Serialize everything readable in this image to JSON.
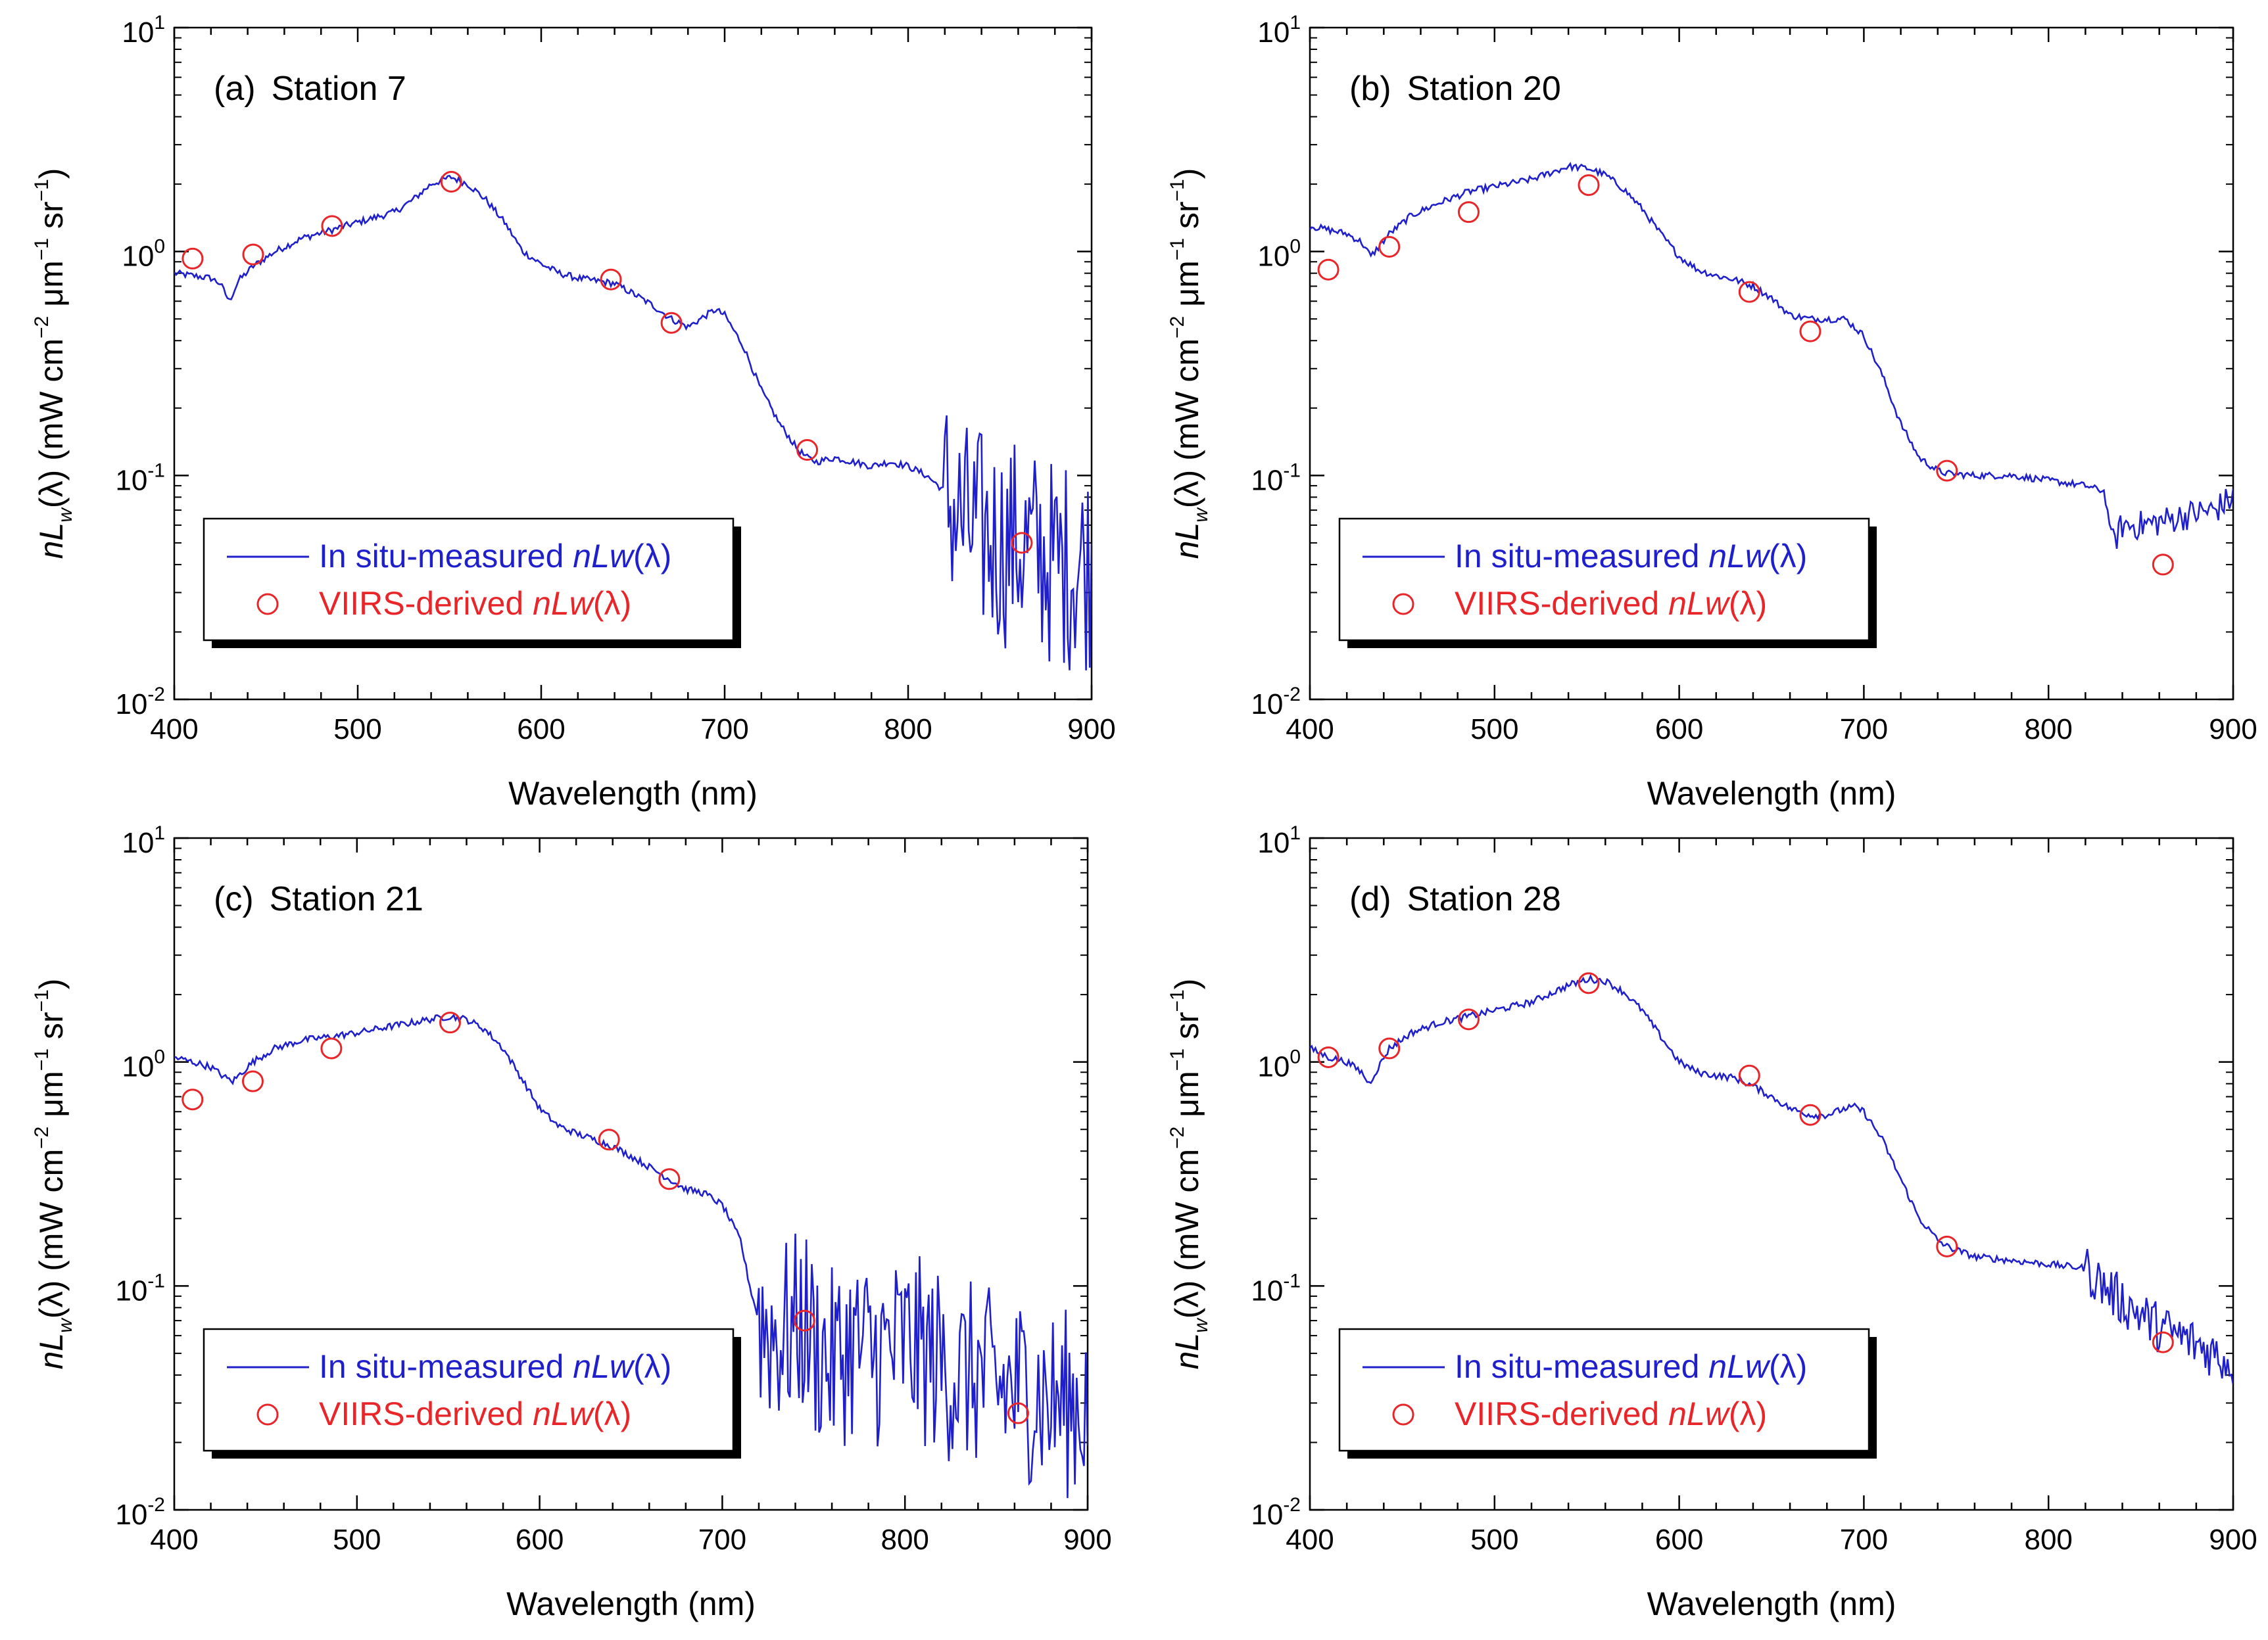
{
  "figure": {
    "description_text": "",
    "colors": {
      "measured": "#1f1fcc",
      "satellite": "#e8262a",
      "axis": "#000000"
    }
  },
  "legend": {
    "measured_label_prefix": "In situ-measured ",
    "satellite_label_prefix": "VIIRS-derived ",
    "quantity_italic": "nLw",
    "quantity_suffix": "(λ)"
  },
  "axes_text": {
    "xlabel": "Wavelength (nm)",
    "ylabel_n": "nL",
    "ylabel_w": "w",
    "ylabel_rest": "(λ) (mW cm",
    "ylabel_exp1": "−2",
    "ylabel_mu": " μm",
    "ylabel_exp2": "−1",
    "ylabel_sr": " sr",
    "ylabel_exp3": "−1",
    "ylabel_close": ")",
    "ytick_base": "10",
    "ytick_exps": [
      "-2",
      "-1",
      "0",
      "1"
    ],
    "xtick_labels": [
      "400",
      "500",
      "600",
      "700",
      "800",
      "900"
    ]
  },
  "chart_data": [
    {
      "type": "line",
      "panel_label": "(a)",
      "title": "Station 7",
      "xlabel": "Wavelength (nm)",
      "ylabel": "nLw(λ) (mW cm−2 μm−1 sr−1)",
      "xlim": [
        400,
        900
      ],
      "ylim": [
        0.01,
        10
      ],
      "yscale": "log",
      "legend_position": "bottom-left",
      "series": [
        {
          "name": "In situ-measured nLw(λ)",
          "style": "line",
          "x": [
            400,
            410,
            420,
            425,
            430,
            435,
            443,
            455,
            470,
            486,
            500,
            520,
            530,
            540,
            551,
            560,
            570,
            580,
            590,
            600,
            610,
            620,
            630,
            640,
            650,
            660,
            671,
            680,
            690,
            695,
            700,
            710,
            720,
            730,
            740,
            745,
            750,
            760,
            770,
            780,
            790,
            800,
            810,
            820,
            830,
            840,
            850,
            860,
            870,
            880,
            890,
            900
          ],
          "y": [
            0.8,
            0.78,
            0.76,
            0.72,
            0.6,
            0.74,
            0.86,
            1.0,
            1.15,
            1.25,
            1.35,
            1.5,
            1.7,
            2.0,
            2.15,
            2.0,
            1.7,
            1.35,
            1.0,
            0.88,
            0.8,
            0.76,
            0.74,
            0.72,
            0.65,
            0.58,
            0.5,
            0.46,
            0.52,
            0.55,
            0.52,
            0.38,
            0.24,
            0.17,
            0.13,
            0.12,
            0.115,
            0.12,
            0.115,
            0.11,
            0.115,
            0.11,
            0.1,
            0.085,
            0.06,
            0.055,
            0.05,
            0.05,
            0.045,
            0.04,
            0.04,
            0.04
          ],
          "noise_from": 820,
          "noise_amp": 0.5
        },
        {
          "name": "VIIRS-derived nLw(λ)",
          "style": "markers",
          "x": [
            410,
            443,
            486,
            551,
            638,
            671,
            745,
            862
          ],
          "y": [
            0.93,
            0.97,
            1.3,
            2.05,
            0.75,
            0.48,
            0.13,
            0.05
          ]
        }
      ]
    },
    {
      "type": "line",
      "panel_label": "(b)",
      "title": "Station 20",
      "xlabel": "Wavelength (nm)",
      "ylabel": "nLw(λ) (mW cm−2 μm−1 sr−1)",
      "xlim": [
        400,
        900
      ],
      "ylim": [
        0.01,
        10
      ],
      "yscale": "log",
      "legend_position": "bottom-left",
      "series": [
        {
          "name": "In situ-measured nLw(λ)",
          "style": "line",
          "x": [
            400,
            410,
            420,
            428,
            433,
            443,
            455,
            470,
            486,
            500,
            520,
            540,
            551,
            560,
            570,
            580,
            590,
            600,
            610,
            620,
            630,
            640,
            650,
            660,
            671,
            680,
            690,
            700,
            710,
            720,
            730,
            740,
            745,
            760,
            780,
            800,
            820,
            830,
            835,
            840,
            850,
            860,
            870,
            880,
            890,
            900
          ],
          "y": [
            1.3,
            1.25,
            1.2,
            1.1,
            0.95,
            1.2,
            1.45,
            1.65,
            1.85,
            1.95,
            2.1,
            2.4,
            2.35,
            2.2,
            1.9,
            1.55,
            1.2,
            0.95,
            0.83,
            0.78,
            0.75,
            0.7,
            0.62,
            0.52,
            0.5,
            0.5,
            0.5,
            0.42,
            0.28,
            0.17,
            0.12,
            0.105,
            0.102,
            0.1,
            0.1,
            0.095,
            0.09,
            0.085,
            0.05,
            0.06,
            0.06,
            0.062,
            0.065,
            0.068,
            0.07,
            0.08
          ],
          "noise_from": 835,
          "noise_amp": 0.07
        },
        {
          "name": "VIIRS-derived nLw(λ)",
          "style": "markers",
          "x": [
            410,
            443,
            486,
            551,
            638,
            671,
            745,
            862
          ],
          "y": [
            0.83,
            1.05,
            1.5,
            1.98,
            0.66,
            0.44,
            0.105,
            0.04
          ]
        }
      ]
    },
    {
      "type": "line",
      "panel_label": "(c)",
      "title": "Station 21",
      "xlabel": "Wavelength (nm)",
      "ylabel": "nLw(λ) (mW cm−2 μm−1 sr−1)",
      "xlim": [
        400,
        900
      ],
      "ylim": [
        0.01,
        10
      ],
      "yscale": "log",
      "legend_position": "bottom-left",
      "series": [
        {
          "name": "In situ-measured nLw(λ)",
          "style": "line",
          "x": [
            400,
            410,
            420,
            428,
            432,
            443,
            455,
            470,
            486,
            500,
            520,
            540,
            551,
            560,
            570,
            580,
            590,
            600,
            610,
            620,
            630,
            640,
            650,
            660,
            671,
            680,
            690,
            700,
            710,
            715,
            720,
            730,
            740,
            745,
            750,
            760,
            770,
            780,
            790,
            800,
            810,
            820,
            830,
            840,
            850,
            860,
            870,
            880,
            890,
            900
          ],
          "y": [
            1.05,
            1.0,
            0.95,
            0.85,
            0.82,
            1.0,
            1.15,
            1.25,
            1.3,
            1.35,
            1.45,
            1.55,
            1.6,
            1.55,
            1.4,
            1.15,
            0.85,
            0.62,
            0.52,
            0.48,
            0.45,
            0.42,
            0.38,
            0.34,
            0.3,
            0.27,
            0.26,
            0.23,
            0.16,
            0.1,
            0.07,
            0.06,
            0.065,
            0.07,
            0.055,
            0.045,
            0.055,
            0.05,
            0.05,
            0.055,
            0.05,
            0.045,
            0.04,
            0.04,
            0.035,
            0.035,
            0.035,
            0.03,
            0.03,
            0.03
          ],
          "noise_from": 720,
          "noise_amp": 0.45
        },
        {
          "name": "VIIRS-derived nLw(λ)",
          "style": "markers",
          "x": [
            410,
            443,
            486,
            551,
            638,
            671,
            745,
            862
          ],
          "y": [
            0.68,
            0.82,
            1.15,
            1.5,
            0.45,
            0.3,
            0.07,
            0.027
          ]
        }
      ]
    },
    {
      "type": "line",
      "panel_label": "(d)",
      "title": "Station 28",
      "xlabel": "Wavelength (nm)",
      "ylabel": "nLw(λ) (mW cm−2 μm−1 sr−1)",
      "xlim": [
        400,
        900
      ],
      "ylim": [
        0.01,
        10
      ],
      "yscale": "log",
      "legend_position": "bottom-left",
      "series": [
        {
          "name": "In situ-measured nLw(λ)",
          "style": "line",
          "x": [
            400,
            410,
            420,
            428,
            432,
            443,
            455,
            470,
            486,
            500,
            520,
            540,
            551,
            560,
            570,
            580,
            590,
            600,
            610,
            620,
            630,
            640,
            650,
            660,
            671,
            680,
            690,
            695,
            700,
            710,
            720,
            730,
            740,
            745,
            760,
            780,
            800,
            820,
            830,
            840,
            850,
            860,
            870,
            880,
            890,
            900
          ],
          "y": [
            1.15,
            1.05,
            1.0,
            0.9,
            0.8,
            1.15,
            1.35,
            1.5,
            1.6,
            1.7,
            1.85,
            2.2,
            2.35,
            2.3,
            2.05,
            1.7,
            1.3,
            1.0,
            0.9,
            0.87,
            0.85,
            0.78,
            0.7,
            0.62,
            0.58,
            0.58,
            0.62,
            0.63,
            0.6,
            0.45,
            0.3,
            0.2,
            0.16,
            0.15,
            0.135,
            0.13,
            0.125,
            0.12,
            0.1,
            0.085,
            0.075,
            0.065,
            0.06,
            0.055,
            0.05,
            0.045
          ],
          "noise_from": 820,
          "noise_amp": 0.12
        },
        {
          "name": "VIIRS-derived nLw(λ)",
          "style": "markers",
          "x": [
            410,
            443,
            486,
            551,
            638,
            671,
            745,
            862
          ],
          "y": [
            1.05,
            1.15,
            1.55,
            2.25,
            0.87,
            0.58,
            0.15,
            0.056
          ]
        }
      ]
    }
  ]
}
